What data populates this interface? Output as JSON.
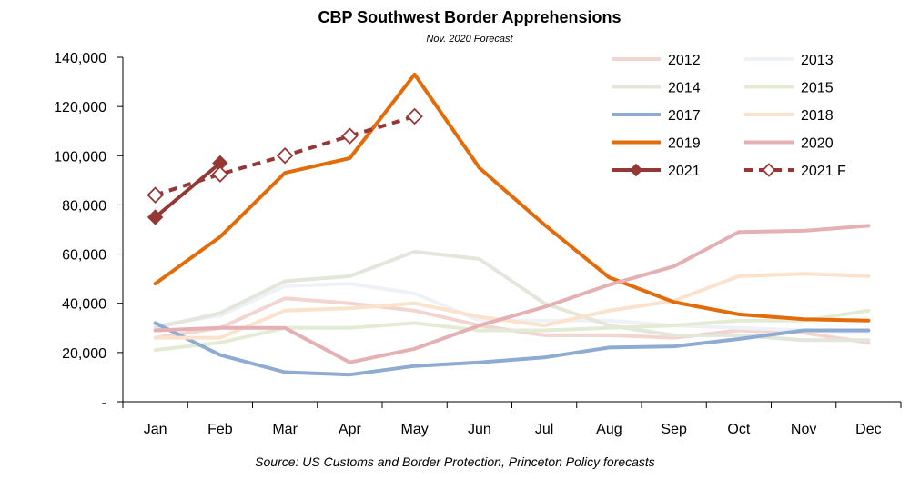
{
  "chart_data": {
    "type": "line",
    "title": "CBP Southwest Border Apprehensions",
    "subtitle": "Nov. 2020  Forecast",
    "source": "Source: US Customs and Border Protection, Princeton Policy forecasts",
    "xlabel": "",
    "ylabel": "",
    "ylim": [
      0,
      140000
    ],
    "yticks": [
      {
        "value": 0,
        "label": "-"
      },
      {
        "value": 20000,
        "label": "20,000"
      },
      {
        "value": 40000,
        "label": "40,000"
      },
      {
        "value": 60000,
        "label": "60,000"
      },
      {
        "value": 80000,
        "label": "80,000"
      },
      {
        "value": 100000,
        "label": "100,000"
      },
      {
        "value": 120000,
        "label": "120,000"
      },
      {
        "value": 140000,
        "label": "140,000"
      }
    ],
    "categories": [
      "Jan",
      "Feb",
      "Mar",
      "Apr",
      "May",
      "Jun",
      "Jul",
      "Aug",
      "Sep",
      "Oct",
      "Nov",
      "Dec"
    ],
    "legend_position": "top-right",
    "series": [
      {
        "name": "2012",
        "color": "#f2d4d1",
        "style": "solid",
        "values": [
          26000,
          30000,
          42000,
          40000,
          37000,
          31000,
          27000,
          27000,
          26000,
          29000,
          28000,
          24000
        ]
      },
      {
        "name": "2013",
        "color": "#eef1f6",
        "style": "solid",
        "values": [
          31000,
          35000,
          47000,
          48000,
          44000,
          33000,
          33000,
          33000,
          31000,
          30000,
          29000,
          28000
        ]
      },
      {
        "name": "2014",
        "color": "#e3e6da",
        "style": "solid",
        "values": [
          30000,
          36000,
          49000,
          51000,
          61000,
          58000,
          40000,
          31000,
          27000,
          27000,
          25000,
          25000
        ]
      },
      {
        "name": "2015",
        "color": "#e4ebd4",
        "style": "solid",
        "values": [
          21000,
          24000,
          30000,
          30000,
          32000,
          29000,
          29000,
          30000,
          31000,
          33000,
          33000,
          37000
        ]
      },
      {
        "name": "2017",
        "color": "#8eabd2",
        "style": "solid",
        "values": [
          32000,
          19000,
          12000,
          11000,
          14500,
          16000,
          18000,
          22000,
          22500,
          25500,
          29000,
          29000
        ]
      },
      {
        "name": "2018",
        "color": "#fbe2cc",
        "style": "solid",
        "values": [
          26000,
          26000,
          37000,
          38000,
          40000,
          34500,
          31000,
          37000,
          41000,
          51000,
          52000,
          51000
        ]
      },
      {
        "name": "2019",
        "color": "#e36c0a",
        "style": "solid",
        "values": [
          48000,
          67000,
          93000,
          99000,
          133000,
          95000,
          72000,
          50500,
          40500,
          35500,
          33500,
          33000
        ]
      },
      {
        "name": "2020",
        "color": "#e4b0b4",
        "style": "solid",
        "values": [
          29000,
          30000,
          30000,
          16000,
          21500,
          31000,
          38500,
          47500,
          55000,
          69000,
          69500,
          71500
        ]
      },
      {
        "name": "2021",
        "color": "#953735",
        "style": "solid-diamond",
        "values": [
          75000,
          97000,
          null,
          null,
          null,
          null,
          null,
          null,
          null,
          null,
          null,
          null
        ]
      },
      {
        "name": "2021 F",
        "color": "#953735",
        "style": "dashed-diamond-open",
        "values": [
          84000,
          92500,
          100000,
          108000,
          116000,
          null,
          null,
          null,
          null,
          null,
          null,
          null
        ]
      }
    ]
  }
}
